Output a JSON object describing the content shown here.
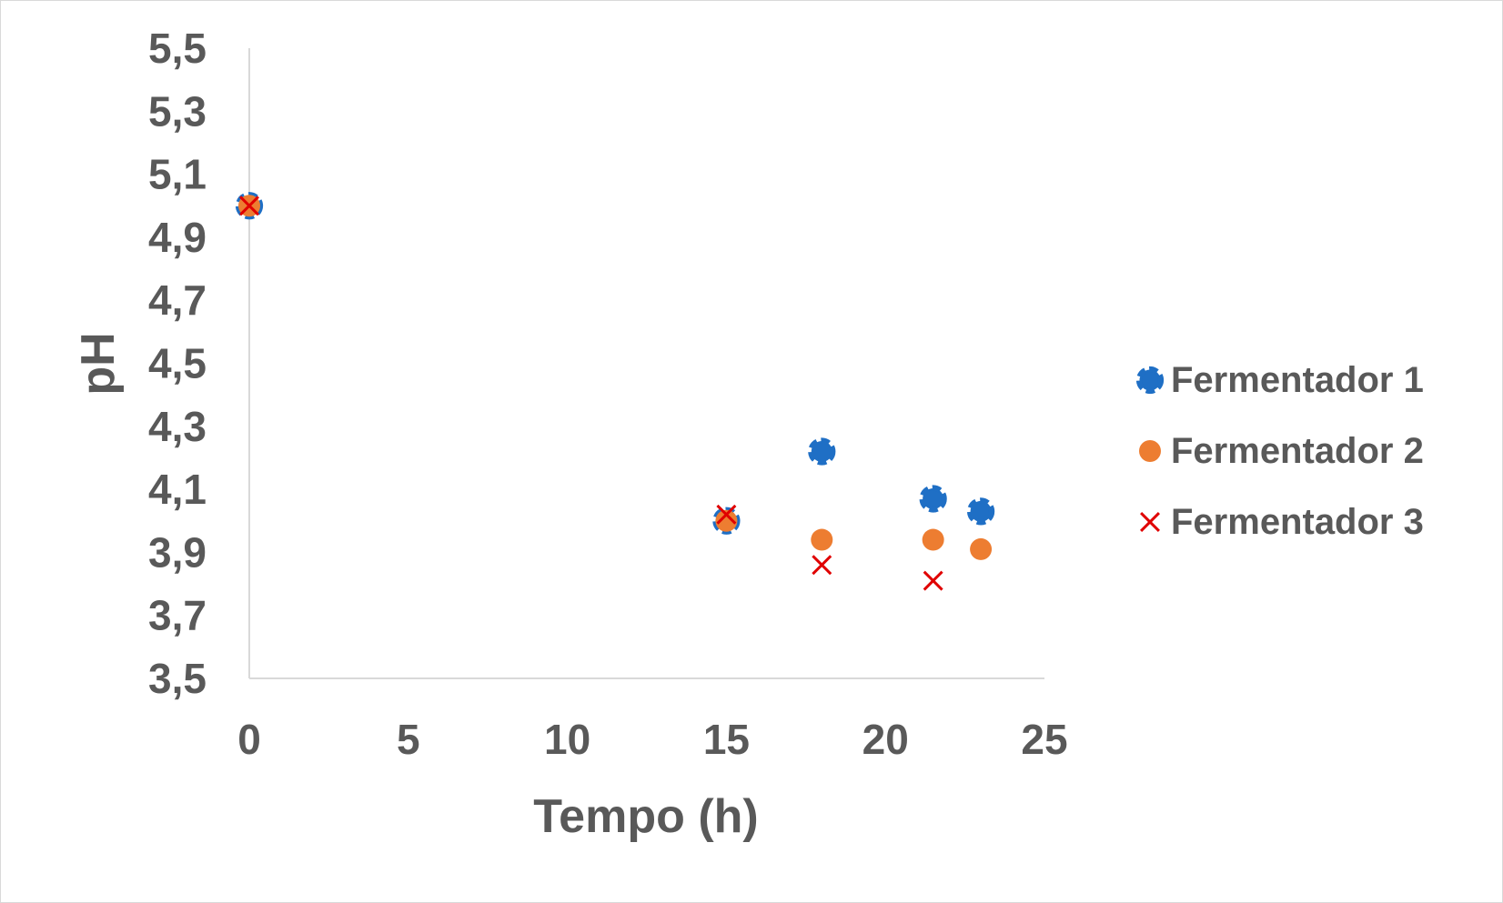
{
  "chart_data": {
    "type": "scatter",
    "title": "",
    "xlabel": "Tempo (h)",
    "ylabel": "pH",
    "xlim": [
      0,
      25
    ],
    "ylim": [
      3.5,
      5.5
    ],
    "xticks": [
      0,
      5,
      10,
      15,
      20,
      25
    ],
    "xtick_labels": [
      "0",
      "5",
      "10",
      "15",
      "20",
      "25"
    ],
    "yticks": [
      3.5,
      3.7,
      3.9,
      4.1,
      4.3,
      4.5,
      4.7,
      4.9,
      5.1,
      5.3,
      5.5
    ],
    "ytick_labels": [
      "3,5",
      "3,7",
      "3,9",
      "4,1",
      "4,3",
      "4,5",
      "4,7",
      "4,9",
      "5,1",
      "5,3",
      "5,5"
    ],
    "grid": false,
    "legend_position": "right",
    "series": [
      {
        "name": "Fermentador 1",
        "marker": "cog",
        "color": "#1f6fc5",
        "x": [
          0,
          15,
          18,
          21.5,
          23
        ],
        "y": [
          5.0,
          4.0,
          4.22,
          4.07,
          4.03
        ]
      },
      {
        "name": "Fermentador 2",
        "marker": "circle",
        "color": "#ed7d31",
        "x": [
          0,
          15,
          18,
          21.5,
          23
        ],
        "y": [
          5.0,
          4.0,
          3.94,
          3.94,
          3.91
        ]
      },
      {
        "name": "Fermentador 3",
        "marker": "x",
        "color": "#e00000",
        "x": [
          0,
          15,
          18,
          21.5
        ],
        "y": [
          5.0,
          4.02,
          3.86,
          3.81
        ]
      }
    ],
    "colors": {
      "axis": "#d9d9d9",
      "text": "#595959",
      "frame": "#d9d9d9"
    }
  }
}
